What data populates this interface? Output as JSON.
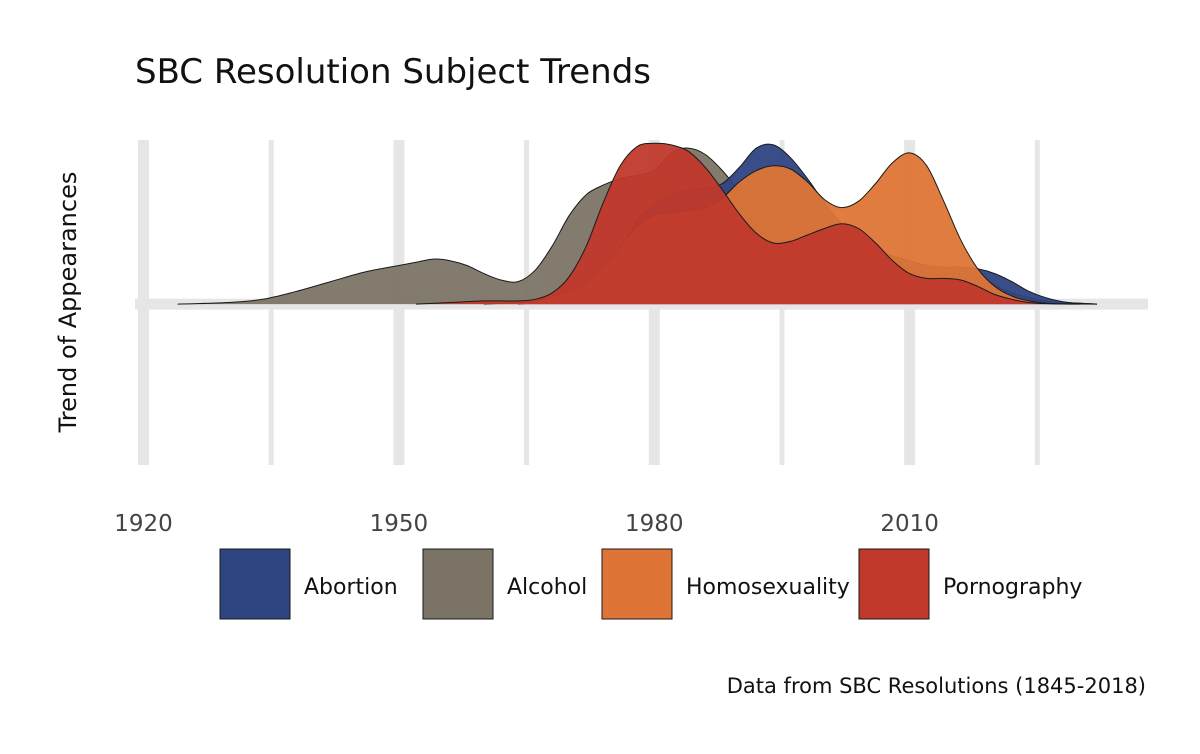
{
  "chart_data": {
    "type": "area",
    "title": "SBC Resolution Subject Trends",
    "ylabel": "Trend of Appearances",
    "xlabel": "",
    "caption": "Data from SBC Resolutions (1845-2018)",
    "x_ticks": [
      "1920",
      "1950",
      "1980",
      "2010"
    ],
    "x_tick_values": [
      1920,
      1950,
      1980,
      2010
    ],
    "xlim": [
      1919,
      2038
    ],
    "ylim": [
      -1.0,
      1.07
    ],
    "grid": true,
    "grid_x_major": [
      1920,
      1950,
      1980,
      2010
    ],
    "grid_x_minor": [
      1935,
      1965,
      1995,
      2025
    ],
    "legend_position": "bottom",
    "series": [
      {
        "name": "Abortion",
        "color": "#2e4582",
        "x": [
          1964,
          1968,
          1970,
          1972,
          1974,
          1976,
          1978,
          1980,
          1982,
          1984,
          1986,
          1988,
          1990,
          1992,
          1994,
          1996,
          1998,
          2000,
          2002,
          2004,
          2006,
          2008,
          2010,
          2012,
          2014,
          2016,
          2018,
          2020,
          2022,
          2024,
          2026,
          2028,
          2030,
          2032
        ],
        "values": [
          0,
          0.02,
          0.05,
          0.1,
          0.2,
          0.34,
          0.52,
          0.62,
          0.68,
          0.71,
          0.72,
          0.75,
          0.85,
          0.97,
          0.99,
          0.91,
          0.78,
          0.63,
          0.5,
          0.4,
          0.34,
          0.3,
          0.27,
          0.24,
          0.23,
          0.23,
          0.22,
          0.19,
          0.14,
          0.08,
          0.04,
          0.015,
          0.005,
          0
        ]
      },
      {
        "name": "Alcohol",
        "color": "#7b7466",
        "x": [
          1924,
          1930,
          1934,
          1938,
          1942,
          1946,
          1950,
          1952,
          1954,
          1956,
          1958,
          1960,
          1962,
          1964,
          1966,
          1968,
          1970,
          1972,
          1974,
          1976,
          1978,
          1980,
          1982,
          1984,
          1986,
          1988,
          1990,
          1992,
          1994,
          1996,
          1998,
          2000,
          2002,
          2004,
          2006,
          2008,
          2010,
          2012,
          2014,
          2016,
          2018,
          2020,
          2022,
          2026,
          2032
        ],
        "values": [
          0,
          0.01,
          0.03,
          0.08,
          0.14,
          0.2,
          0.24,
          0.26,
          0.28,
          0.27,
          0.24,
          0.19,
          0.15,
          0.14,
          0.21,
          0.36,
          0.55,
          0.68,
          0.74,
          0.78,
          0.8,
          0.83,
          0.94,
          0.97,
          0.93,
          0.83,
          0.7,
          0.56,
          0.46,
          0.41,
          0.4,
          0.42,
          0.45,
          0.43,
          0.37,
          0.29,
          0.23,
          0.2,
          0.19,
          0.19,
          0.17,
          0.12,
          0.07,
          0.02,
          0
        ]
      },
      {
        "name": "Homosexuality",
        "color": "#de7536",
        "x": [
          1960,
          1964,
          1966,
          1968,
          1970,
          1972,
          1974,
          1976,
          1978,
          1980,
          1982,
          1984,
          1986,
          1988,
          1990,
          1992,
          1994,
          1996,
          1998,
          2000,
          2002,
          2004,
          2006,
          2008,
          2010,
          2012,
          2014,
          2016,
          2018,
          2020,
          2022,
          2024,
          2026,
          2028,
          2032
        ],
        "values": [
          0,
          0.01,
          0.02,
          0.05,
          0.09,
          0.14,
          0.24,
          0.36,
          0.48,
          0.55,
          0.57,
          0.58,
          0.6,
          0.66,
          0.76,
          0.83,
          0.86,
          0.84,
          0.76,
          0.65,
          0.6,
          0.64,
          0.75,
          0.88,
          0.94,
          0.86,
          0.64,
          0.4,
          0.22,
          0.11,
          0.05,
          0.02,
          0.006,
          0.002,
          0
        ]
      },
      {
        "name": "Pornography",
        "color": "#c0392b",
        "x": [
          1952,
          1956,
          1960,
          1964,
          1966,
          1968,
          1970,
          1972,
          1974,
          1976,
          1978,
          1980,
          1982,
          1984,
          1986,
          1988,
          1990,
          1992,
          1994,
          1996,
          1998,
          2000,
          2002,
          2004,
          2006,
          2008,
          2010,
          2012,
          2014,
          2016,
          2018,
          2020,
          2022,
          2024,
          2026,
          2030
        ],
        "values": [
          0,
          0.01,
          0.02,
          0.02,
          0.03,
          0.07,
          0.17,
          0.36,
          0.63,
          0.86,
          0.98,
          1.0,
          0.99,
          0.95,
          0.85,
          0.71,
          0.56,
          0.44,
          0.38,
          0.39,
          0.43,
          0.47,
          0.5,
          0.47,
          0.38,
          0.27,
          0.19,
          0.16,
          0.16,
          0.15,
          0.11,
          0.06,
          0.03,
          0.01,
          0.003,
          0
        ]
      }
    ]
  }
}
